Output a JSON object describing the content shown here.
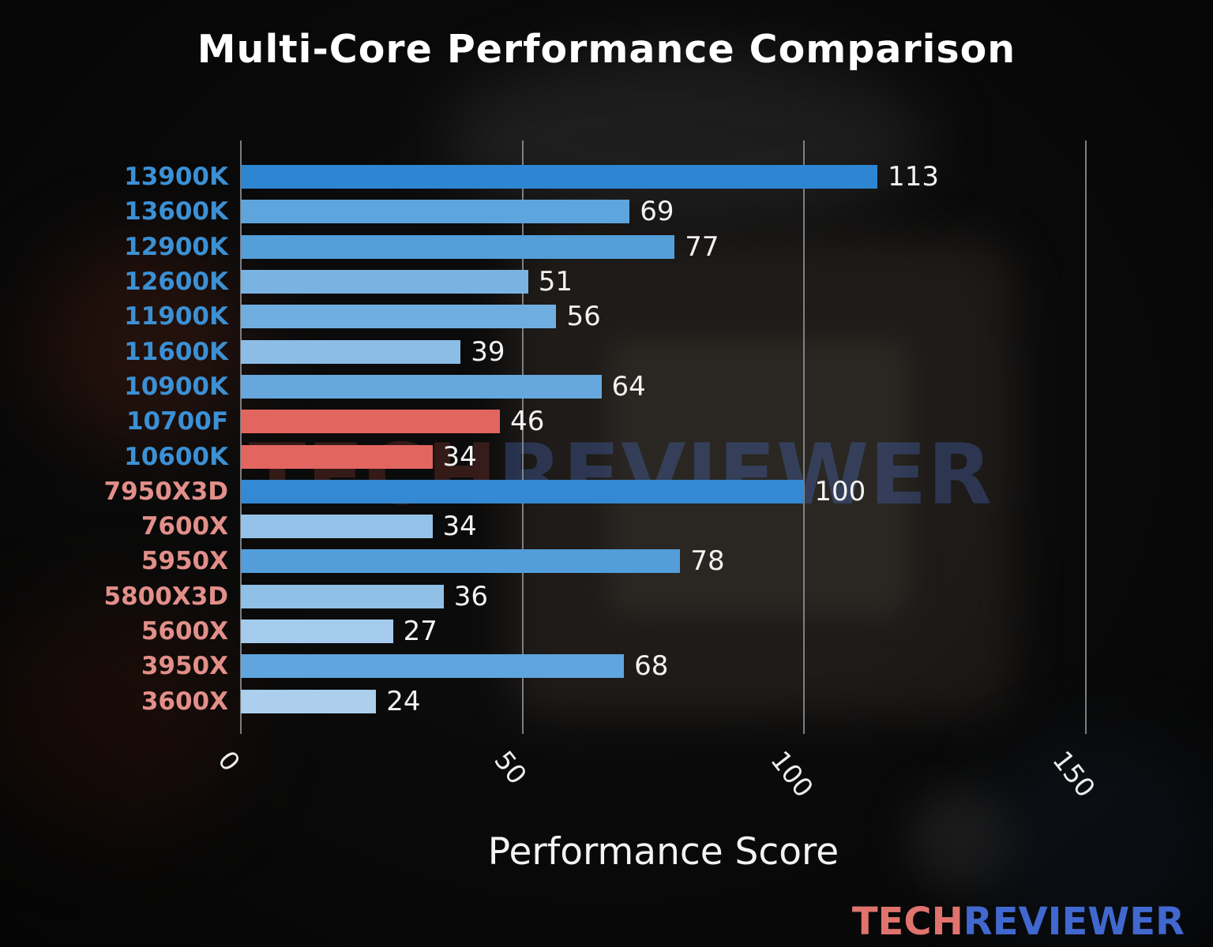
{
  "page": {
    "watermark": {
      "left": "TECH",
      "right": "REVIEWER"
    },
    "logo": {
      "left": "TECH",
      "right": "REVIEWER"
    }
  },
  "chart_data": {
    "type": "bar",
    "orientation": "horizontal",
    "title": "Multi-Core Performance Comparison",
    "xlabel": "Performance Score",
    "xlim": [
      0,
      150
    ],
    "xticks": [
      0,
      50,
      100,
      150
    ],
    "grid": true,
    "legend": false,
    "categories": [
      "13900K",
      "13600K",
      "12900K",
      "12600K",
      "11900K",
      "11600K",
      "10900K",
      "10700F",
      "10600K",
      "7950X3D",
      "7600X",
      "5950X",
      "5800X3D",
      "5600X",
      "3950X",
      "3600X"
    ],
    "values": [
      113,
      69,
      77,
      51,
      56,
      39,
      64,
      46,
      34,
      100,
      34,
      78,
      36,
      27,
      68,
      24
    ],
    "bar_colors": [
      "#2e86d2",
      "#5ea4dd",
      "#549eda",
      "#7ab3e2",
      "#71aee0",
      "#8cbde6",
      "#66a8de",
      "#e2655f",
      "#e2655f",
      "#3389d3",
      "#95c2e8",
      "#539eda",
      "#91c0e7",
      "#a5cbec",
      "#60a5dd",
      "#abcfed"
    ],
    "label_colors": [
      "#3c90d4",
      "#3c90d4",
      "#3c90d4",
      "#3c90d4",
      "#3c90d4",
      "#3c90d4",
      "#3c90d4",
      "#3c90d4",
      "#3c90d4",
      "#e28f8a",
      "#e28f8a",
      "#e28f8a",
      "#e28f8a",
      "#e28f8a",
      "#e28f8a",
      "#e28f8a"
    ],
    "accent_colors": {
      "intel_label": "#3c90d4",
      "amd_label": "#e28f8a",
      "highlight_red": "#e2655f"
    }
  }
}
